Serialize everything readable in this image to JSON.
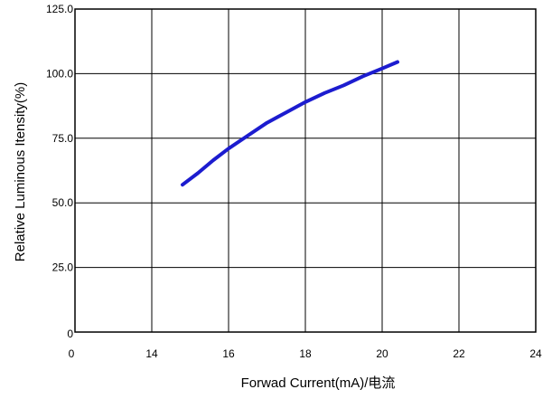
{
  "chart_data": {
    "type": "line",
    "xlabel": "Forwad Current(mA)/电流",
    "ylabel": "Relative Luminous Itensity(%)",
    "x_tick_labels": [
      "0",
      "14",
      "16",
      "18",
      "20",
      "22",
      "24"
    ],
    "y_tick_labels": [
      "0",
      "25.0",
      "50.0",
      "75.0",
      "100.0",
      "125.0"
    ],
    "y_ticks": [
      0,
      25,
      50,
      75,
      100,
      125
    ],
    "ylim": [
      0,
      125
    ],
    "x_axis_note": "first tick is labeled 0; remaining ticks are evenly spaced 14 to 24",
    "grid": true,
    "legend": "none",
    "series": [
      {
        "color": "#1c1ccf",
        "x": [
          14.8,
          15.2,
          15.6,
          16.0,
          16.5,
          17.0,
          17.5,
          18.0,
          18.5,
          19.0,
          19.5,
          20.0,
          20.4
        ],
        "y": [
          57,
          61.5,
          66.5,
          71,
          76,
          81,
          85,
          89,
          92.5,
          95.5,
          99,
          102,
          104.5
        ]
      }
    ]
  }
}
